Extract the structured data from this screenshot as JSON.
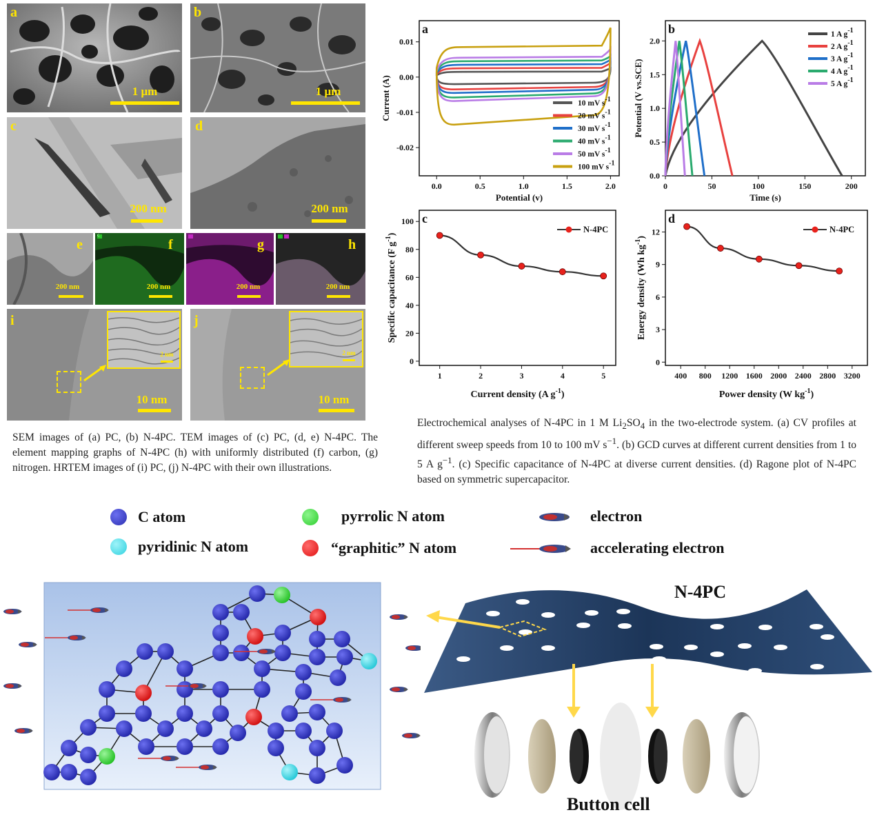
{
  "micrographs": {
    "panels": [
      {
        "id": "a",
        "scale": "1 μm"
      },
      {
        "id": "b",
        "scale": "1 μm"
      },
      {
        "id": "c",
        "scale": "200 nm"
      },
      {
        "id": "d",
        "scale": "200 nm"
      },
      {
        "id": "e",
        "scale": "200 nm"
      },
      {
        "id": "f",
        "scale": "200 nm"
      },
      {
        "id": "g",
        "scale": "200 nm"
      },
      {
        "id": "h",
        "scale": "200 nm"
      },
      {
        "id": "i",
        "scale": "10 nm",
        "inset_scale": "2 nm"
      },
      {
        "id": "j",
        "scale": "10 nm",
        "inset_scale": "2 nm"
      }
    ],
    "map_badges": {
      "f": "C",
      "g": "N",
      "h": [
        "C",
        "N"
      ]
    }
  },
  "captions": {
    "left": "SEM images of (a) PC, (b) N-4PC. TEM images of (c) PC, (d, e) N-4PC. The element mapping graphs of N-4PC (h) with uniformly distributed (f) carbon, (g) nitrogen. HRTEM images of (i) PC, (j) N-4PC with their own illustrations.",
    "right_parts": {
      "p1": "Electrochemical analyses of N-4PC in 1 M Li",
      "sub1": "2",
      "p2": "SO",
      "sub2": "4",
      "p3": " in the two-electrode system. (a) CV profiles at different sweep speeds from 10 to 100 mV s",
      "sup1": "−1",
      "p4": ". (b) GCD curves at different current densities from 1 to 5 A g",
      "sup2": "−1",
      "p5": ". (c) Specific capacitance of N-4PC at diverse current densities. (d) Ragone plot of N-4PC based on symmetric supercapacitor."
    }
  },
  "chart_data": [
    {
      "id": "a",
      "type": "line",
      "panel_label": "a",
      "xlabel": "Potential (v)",
      "ylabel": "Current (A)",
      "xlim": [
        -0.2,
        2.1
      ],
      "ylim": [
        -0.028,
        0.016
      ],
      "xticks": [
        "0.0",
        "0.5",
        "1.0",
        "1.5",
        "2.0"
      ],
      "xtick_values": [
        0,
        0.5,
        1,
        1.5,
        2
      ],
      "yticks": [
        "0.01",
        "0.00",
        "-0.01",
        "-0.02"
      ],
      "ytick_values": [
        0.01,
        0,
        -0.01,
        -0.02
      ],
      "legend_position": "bottom-right",
      "series": [
        {
          "name": "10 mV s",
          "sup": "-1",
          "color": "#555555",
          "upper": 0.0015,
          "lower": -0.002,
          "end_upper": 0.0025,
          "end_lower": -0.0005
        },
        {
          "name": "20 mV s",
          "sup": "-1",
          "color": "#e8413f",
          "upper": 0.0025,
          "lower": -0.0035,
          "end_upper": 0.004,
          "end_lower": -0.001
        },
        {
          "name": "30 mV s",
          "sup": "-1",
          "color": "#1f6fc9",
          "upper": 0.0035,
          "lower": -0.0045,
          "end_upper": 0.005,
          "end_lower": -0.0015
        },
        {
          "name": "40 mV s",
          "sup": "-1",
          "color": "#2aaa6e",
          "upper": 0.0045,
          "lower": -0.0058,
          "end_upper": 0.006,
          "end_lower": -0.002
        },
        {
          "name": "50 mV s",
          "sup": "-1",
          "color": "#b97ce6",
          "upper": 0.0055,
          "lower": -0.0068,
          "end_upper": 0.008,
          "end_lower": -0.0025
        },
        {
          "name": "100 mV s",
          "sup": "-1",
          "color": "#c8a010",
          "upper": 0.0085,
          "lower": -0.0135,
          "end_upper": 0.014,
          "end_lower": -0.0045
        }
      ]
    },
    {
      "id": "b",
      "type": "line",
      "panel_label": "b",
      "xlabel": "Time (s)",
      "ylabel": "Potential (V vs.SCE)",
      "xlim": [
        0,
        215
      ],
      "ylim": [
        0,
        2.3
      ],
      "xticks": [
        "0",
        "50",
        "100",
        "150",
        "200"
      ],
      "xtick_values": [
        0,
        50,
        100,
        150,
        200
      ],
      "yticks": [
        "0.0",
        "0.5",
        "1.0",
        "1.5",
        "2.0"
      ],
      "ytick_values": [
        0,
        0.5,
        1,
        1.5,
        2
      ],
      "legend_position": "top-right",
      "series": [
        {
          "name": "1 A g",
          "sup": "-1",
          "color": "#444444",
          "peak_t": 104,
          "end_t": 190
        },
        {
          "name": "2 A g",
          "sup": "-1",
          "color": "#e8413f",
          "peak_t": 37,
          "end_t": 72
        },
        {
          "name": "3 A g",
          "sup": "-1",
          "color": "#1f6fc9",
          "peak_t": 22,
          "end_t": 42
        },
        {
          "name": "4 A g",
          "sup": "-1",
          "color": "#2aaa6e",
          "peak_t": 15,
          "end_t": 29
        },
        {
          "name": "5 A g",
          "sup": "-1",
          "color": "#b97ce6",
          "peak_t": 11,
          "end_t": 21
        }
      ]
    },
    {
      "id": "c",
      "type": "line",
      "panel_label": "c",
      "xlabel": "Current density (A g",
      "xlabel_sup": "-1",
      "xlabel_end": ")",
      "ylabel": "Specific capacitance (F g",
      "ylabel_sup": "-1",
      "ylabel_end": ")",
      "xlim": [
        0.5,
        5.3
      ],
      "ylim": [
        -3,
        108
      ],
      "xticks": [
        "1",
        "2",
        "3",
        "4",
        "5"
      ],
      "xtick_values": [
        1,
        2,
        3,
        4,
        5
      ],
      "yticks": [
        "0",
        "20",
        "40",
        "60",
        "80",
        "100"
      ],
      "ytick_values": [
        0,
        20,
        40,
        60,
        80,
        100
      ],
      "legend_position": "top-right",
      "series": [
        {
          "name": "N-4PC",
          "color": "#333333",
          "marker_color": "#e8221c",
          "x": [
            1,
            2,
            3,
            4,
            5
          ],
          "y": [
            90,
            76,
            68,
            64,
            61
          ]
        }
      ]
    },
    {
      "id": "d",
      "type": "line",
      "panel_label": "d",
      "xlabel": "Power density (W kg",
      "xlabel_sup": "-1",
      "xlabel_end": ")",
      "ylabel": "Energy density (Wh kg",
      "ylabel_sup": "-1",
      "ylabel_end": ")",
      "xlim": [
        150,
        3450
      ],
      "ylim": [
        -0.3,
        14
      ],
      "xticks": [
        "400",
        "800",
        "1200",
        "1600",
        "2000",
        "2400",
        "2800",
        "3200"
      ],
      "xtick_values": [
        400,
        800,
        1200,
        1600,
        2000,
        2400,
        2800,
        3200
      ],
      "yticks": [
        "0",
        "3",
        "6",
        "9",
        "12"
      ],
      "ytick_values": [
        0,
        3,
        6,
        9,
        12
      ],
      "legend_position": "top-right",
      "series": [
        {
          "name": "N-4PC",
          "color": "#333333",
          "marker_color": "#e8221c",
          "x": [
            500,
            1050,
            1680,
            2330,
            2990
          ],
          "y": [
            12.5,
            10.5,
            9.5,
            8.9,
            8.4
          ]
        }
      ]
    }
  ],
  "schematic": {
    "legend": {
      "c_atom": "C atom",
      "pyrrolic": "pyrrolic N atom",
      "electron": "electron",
      "pyridinic": "pyridinic N atom",
      "graphitic": "“graphitic” N atom",
      "accelerating": "accelerating electron"
    },
    "colors": {
      "c_atom": "#2b2fb0",
      "pyrrolic": "#2ccd2c",
      "pyridinic": "#2ed1df",
      "graphitic": "#e01010"
    },
    "sheet_title": "N-4PC",
    "device_title": "Button cell"
  }
}
